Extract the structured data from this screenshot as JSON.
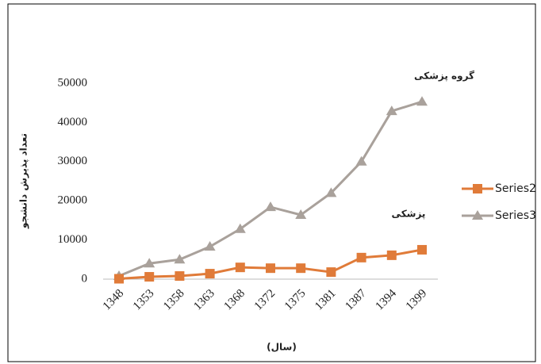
{
  "chart_data": {
    "type": "line",
    "y_label": "تعداد پذیرش دانشجو",
    "x_label": "(سال)",
    "annotations": [
      "گروه پزشکی",
      "پزشکی"
    ],
    "categories": [
      "1348",
      "1353",
      "1358",
      "1363",
      "1368",
      "1372",
      "1375",
      "1381",
      "1387",
      "1394",
      "1399"
    ],
    "series": [
      {
        "name": "Series2",
        "color": "#e07b39",
        "marker": "square",
        "values": [
          100,
          600,
          800,
          1400,
          3000,
          2800,
          2800,
          1800,
          5500,
          6100,
          7500
        ]
      },
      {
        "name": "Series3",
        "color": "#a9a19b",
        "marker": "triangle",
        "values": [
          800,
          4000,
          5000,
          8300,
          12800,
          18400,
          16400,
          22000,
          30000,
          42900,
          45300
        ]
      }
    ],
    "ylim": [
      0,
      50000
    ],
    "yticks": [
      0,
      10000,
      20000,
      30000,
      40000,
      50000
    ],
    "grid": false,
    "legend": "right"
  }
}
